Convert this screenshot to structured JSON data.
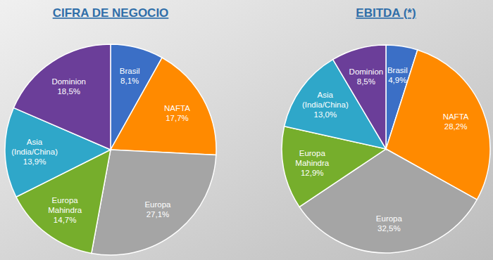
{
  "chart_data": [
    {
      "type": "pie",
      "title": "CIFRA DE NEGOCIO",
      "categories": [
        "Brasil",
        "NAFTA",
        "Europa",
        "Europa Mahindra",
        "Asia (India/China)",
        "Dominion"
      ],
      "values": [
        8.1,
        17.7,
        27.1,
        14.7,
        13.9,
        18.5
      ],
      "value_labels": [
        "8,1%",
        "17,7%",
        "27,1%",
        "14,7%",
        "13,9%",
        "18,5%"
      ],
      "colors": [
        "#3b6fc6",
        "#ff8a00",
        "#a5a5a5",
        "#76ae2c",
        "#2fa7c9",
        "#6b3e99"
      ],
      "data_labels": true
    },
    {
      "type": "pie",
      "title": "EBITDA (*)",
      "categories": [
        "Brasil",
        "NAFTA",
        "Europa",
        "Europa Mahindra",
        "Asia (India/China)",
        "Dominion"
      ],
      "values": [
        4.9,
        28.2,
        32.5,
        12.9,
        13.0,
        8.5
      ],
      "value_labels": [
        "4,9%",
        "28,2%",
        "32,5%",
        "12,9%",
        "13,0%",
        "8,5%"
      ],
      "colors": [
        "#3b6fc6",
        "#ff8a00",
        "#a5a5a5",
        "#76ae2c",
        "#2fa7c9",
        "#6b3e99"
      ],
      "data_labels": true
    }
  ]
}
